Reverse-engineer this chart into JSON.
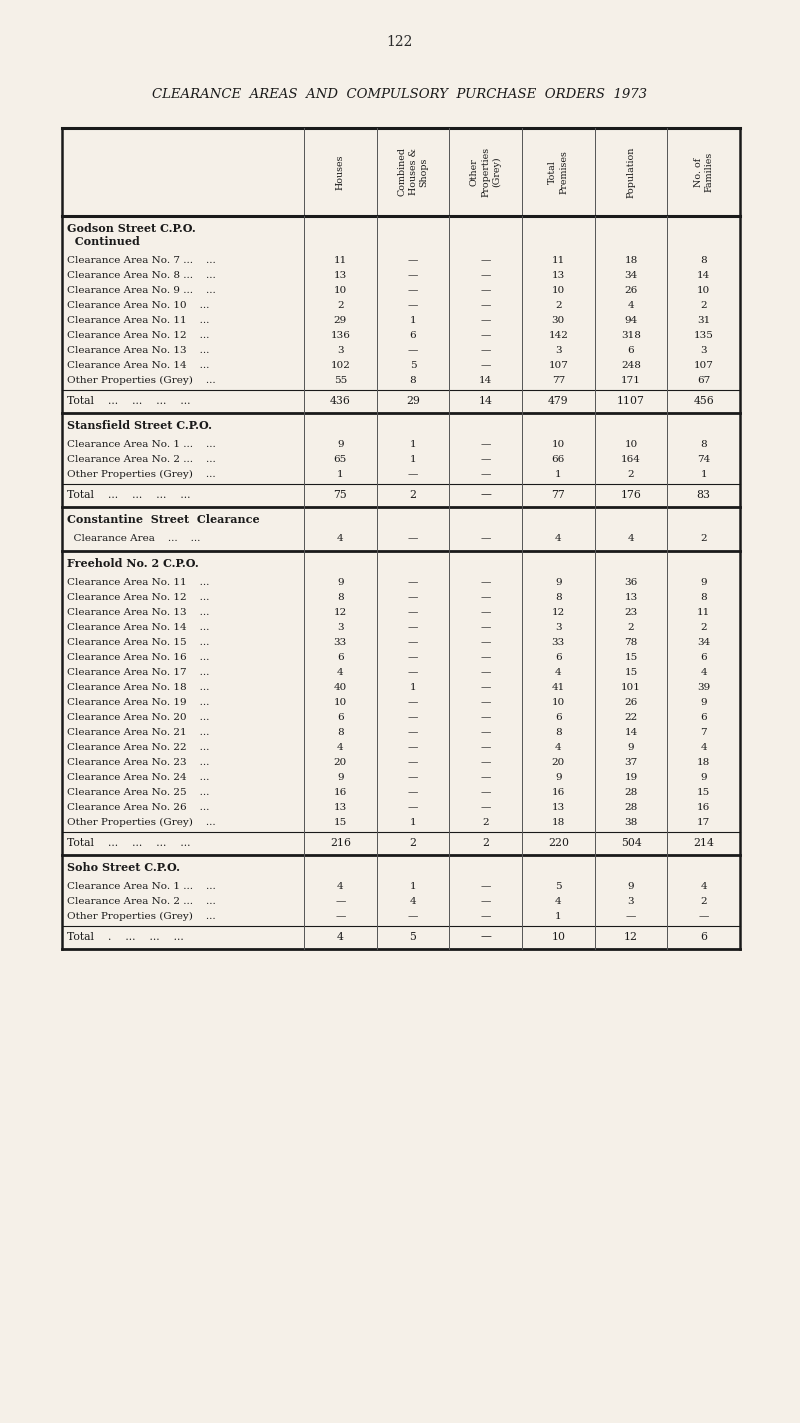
{
  "page_number": "122",
  "title": "CLEARANCE  AREAS  AND  COMPULSORY  PURCHASE  ORDERS  1973",
  "bg_color": "#f5f0e8",
  "col_headers": [
    "Houses",
    "Combined\nHouses &\nShops",
    "Other\nProperties\n(Grey)",
    "Total\nPremises",
    "Population",
    "No. of\nFamilies"
  ],
  "sections": [
    {
      "section_header": "Godson Street C.P.O.\n  Continued",
      "rows": [
        {
          "label": "Clearance Area No. 7 ...    ...",
          "values": [
            "11",
            "—",
            "—",
            "11",
            "18",
            "8"
          ]
        },
        {
          "label": "Clearance Area No. 8 ...    ...",
          "values": [
            "13",
            "—",
            "—",
            "13",
            "34",
            "14"
          ]
        },
        {
          "label": "Clearance Area No. 9 ...    ...",
          "values": [
            "10",
            "—",
            "—",
            "10",
            "26",
            "10"
          ]
        },
        {
          "label": "Clearance Area No. 10    ...",
          "values": [
            "2",
            "—",
            "—",
            "2",
            "4",
            "2"
          ]
        },
        {
          "label": "Clearance Area No. 11    ...",
          "values": [
            "29",
            "1",
            "—",
            "30",
            "94",
            "31"
          ]
        },
        {
          "label": "Clearance Area No. 12    ...",
          "values": [
            "136",
            "6",
            "—",
            "142",
            "318",
            "135"
          ]
        },
        {
          "label": "Clearance Area No. 13    ...",
          "values": [
            "3",
            "—",
            "—",
            "3",
            "6",
            "3"
          ]
        },
        {
          "label": "Clearance Area No. 14    ...",
          "values": [
            "102",
            "5",
            "—",
            "107",
            "248",
            "107"
          ]
        },
        {
          "label": "Other Properties (Grey)    ...",
          "values": [
            "55",
            "8",
            "14",
            "77",
            "171",
            "67"
          ]
        }
      ],
      "total_row": {
        "label": "Total    ...    ...    ...    ...",
        "values": [
          "436",
          "29",
          "14",
          "479",
          "1107",
          "456"
        ]
      }
    },
    {
      "section_header": "Stansfield Street C.P.O.",
      "rows": [
        {
          "label": "Clearance Area No. 1 ...    ...",
          "values": [
            "9",
            "1",
            "—",
            "10",
            "10",
            "8"
          ]
        },
        {
          "label": "Clearance Area No. 2 ...    ...",
          "values": [
            "65",
            "1",
            "—",
            "66",
            "164",
            "74"
          ]
        },
        {
          "label": "Other Properties (Grey)    ...",
          "values": [
            "1",
            "—",
            "—",
            "1",
            "2",
            "1"
          ]
        }
      ],
      "total_row": {
        "label": "Total    ...    ...    ...    ...",
        "values": [
          "75",
          "2",
          "—",
          "77",
          "176",
          "83"
        ]
      }
    },
    {
      "section_header": "Constantine  Street  Clearance",
      "rows": [
        {
          "label": "  Clearance Area    ...    ...",
          "values": [
            "4",
            "—",
            "—",
            "4",
            "4",
            "2"
          ]
        }
      ],
      "total_row": null
    },
    {
      "section_header": "Freehold No. 2 C.P.O.",
      "rows": [
        {
          "label": "Clearance Area No. 11    ...",
          "values": [
            "9",
            "—",
            "—",
            "9",
            "36",
            "9"
          ]
        },
        {
          "label": "Clearance Area No. 12    ...",
          "values": [
            "8",
            "—",
            "—",
            "8",
            "13",
            "8"
          ]
        },
        {
          "label": "Clearance Area No. 13    ...",
          "values": [
            "12",
            "—",
            "—",
            "12",
            "23",
            "11"
          ]
        },
        {
          "label": "Clearance Area No. 14    ...",
          "values": [
            "3",
            "—",
            "—",
            "3",
            "2",
            "2"
          ]
        },
        {
          "label": "Clearance Area No. 15    ...",
          "values": [
            "33",
            "—",
            "—",
            "33",
            "78",
            "34"
          ]
        },
        {
          "label": "Clearance Area No. 16    ...",
          "values": [
            "6",
            "—",
            "—",
            "6",
            "15",
            "6"
          ]
        },
        {
          "label": "Clearance Area No. 17    ...",
          "values": [
            "4",
            "—",
            "—",
            "4",
            "15",
            "4"
          ]
        },
        {
          "label": "Clearance Area No. 18    ...",
          "values": [
            "40",
            "1",
            "—",
            "41",
            "101",
            "39"
          ]
        },
        {
          "label": "Clearance Area No. 19    ...",
          "values": [
            "10",
            "—",
            "—",
            "10",
            "26",
            "9"
          ]
        },
        {
          "label": "Clearance Area No. 20    ...",
          "values": [
            "6",
            "—",
            "—",
            "6",
            "22",
            "6"
          ]
        },
        {
          "label": "Clearance Area No. 21    ...",
          "values": [
            "8",
            "—",
            "—",
            "8",
            "14",
            "7"
          ]
        },
        {
          "label": "Clearance Area No. 22    ...",
          "values": [
            "4",
            "—",
            "—",
            "4",
            "9",
            "4"
          ]
        },
        {
          "label": "Clearance Area No. 23    ...",
          "values": [
            "20",
            "—",
            "—",
            "20",
            "37",
            "18"
          ]
        },
        {
          "label": "Clearance Area No. 24    ...",
          "values": [
            "9",
            "—",
            "—",
            "9",
            "19",
            "9"
          ]
        },
        {
          "label": "Clearance Area No. 25    ...",
          "values": [
            "16",
            "—",
            "—",
            "16",
            "28",
            "15"
          ]
        },
        {
          "label": "Clearance Area No. 26    ...",
          "values": [
            "13",
            "—",
            "—",
            "13",
            "28",
            "16"
          ]
        },
        {
          "label": "Other Properties (Grey)    ...",
          "values": [
            "15",
            "1",
            "2",
            "18",
            "38",
            "17"
          ]
        }
      ],
      "total_row": {
        "label": "Total    ...    ...    ...    ...",
        "values": [
          "216",
          "2",
          "2",
          "220",
          "504",
          "214"
        ]
      }
    },
    {
      "section_header": "Soho Street C.P.O.",
      "rows": [
        {
          "label": "Clearance Area No. 1 ...    ...",
          "values": [
            "4",
            "1",
            "—",
            "5",
            "9",
            "4"
          ]
        },
        {
          "label": "Clearance Area No. 2 ...    ...",
          "values": [
            "—",
            "4",
            "—",
            "4",
            "3",
            "2"
          ]
        },
        {
          "label": "Other Properties (Grey)    ...",
          "values": [
            "—",
            "—",
            "—",
            "1",
            "—",
            "—"
          ]
        }
      ],
      "total_row": {
        "label": "Total    .    ...    ...    ...",
        "values": [
          "4",
          "5",
          "—",
          "10",
          "12",
          "6"
        ]
      }
    }
  ]
}
